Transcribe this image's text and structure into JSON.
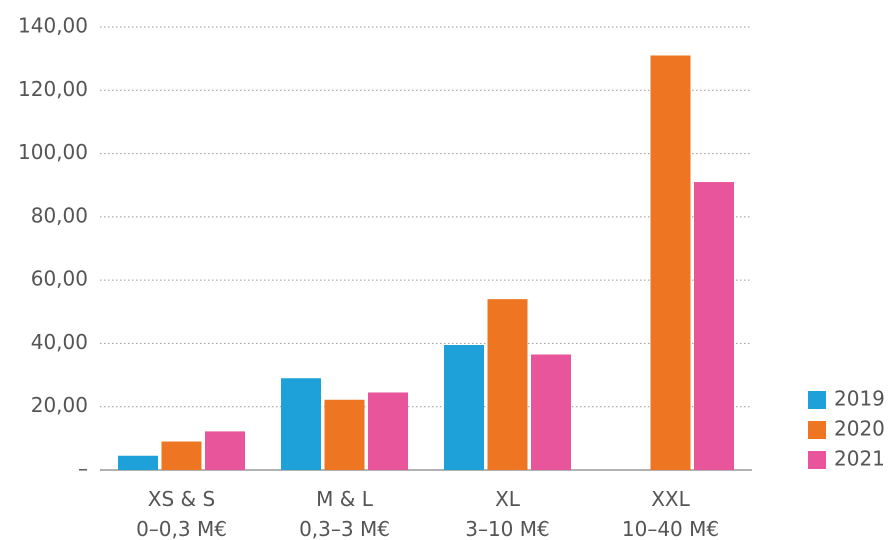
{
  "chart_data": {
    "type": "bar",
    "categories": [
      [
        "XS & S",
        "0–0,3 M€"
      ],
      [
        "M & L",
        "0,3–3 M€"
      ],
      [
        "XL",
        "3–10 M€"
      ],
      [
        "XXL",
        "10–40 M€"
      ]
    ],
    "series": [
      {
        "name": "2019",
        "color": "#1ea0d8",
        "values": [
          4.5,
          29,
          39.5,
          null
        ]
      },
      {
        "name": "2020",
        "color": "#ee7623",
        "values": [
          9,
          22.2,
          54,
          131
        ]
      },
      {
        "name": "2021",
        "color": "#e8559a",
        "values": [
          12.2,
          24.5,
          36.5,
          91
        ]
      }
    ],
    "ylim": [
      0,
      140
    ],
    "yticks": [
      {
        "value": 0,
        "label": "–"
      },
      {
        "value": 20,
        "label": "20,00"
      },
      {
        "value": 40,
        "label": "40,00"
      },
      {
        "value": 60,
        "label": "60,00"
      },
      {
        "value": 80,
        "label": "80,00"
      },
      {
        "value": 100,
        "label": "100,00"
      },
      {
        "value": 120,
        "label": "120,00"
      },
      {
        "value": 140,
        "label": "140,00"
      }
    ],
    "grid": true,
    "legend": "right"
  }
}
